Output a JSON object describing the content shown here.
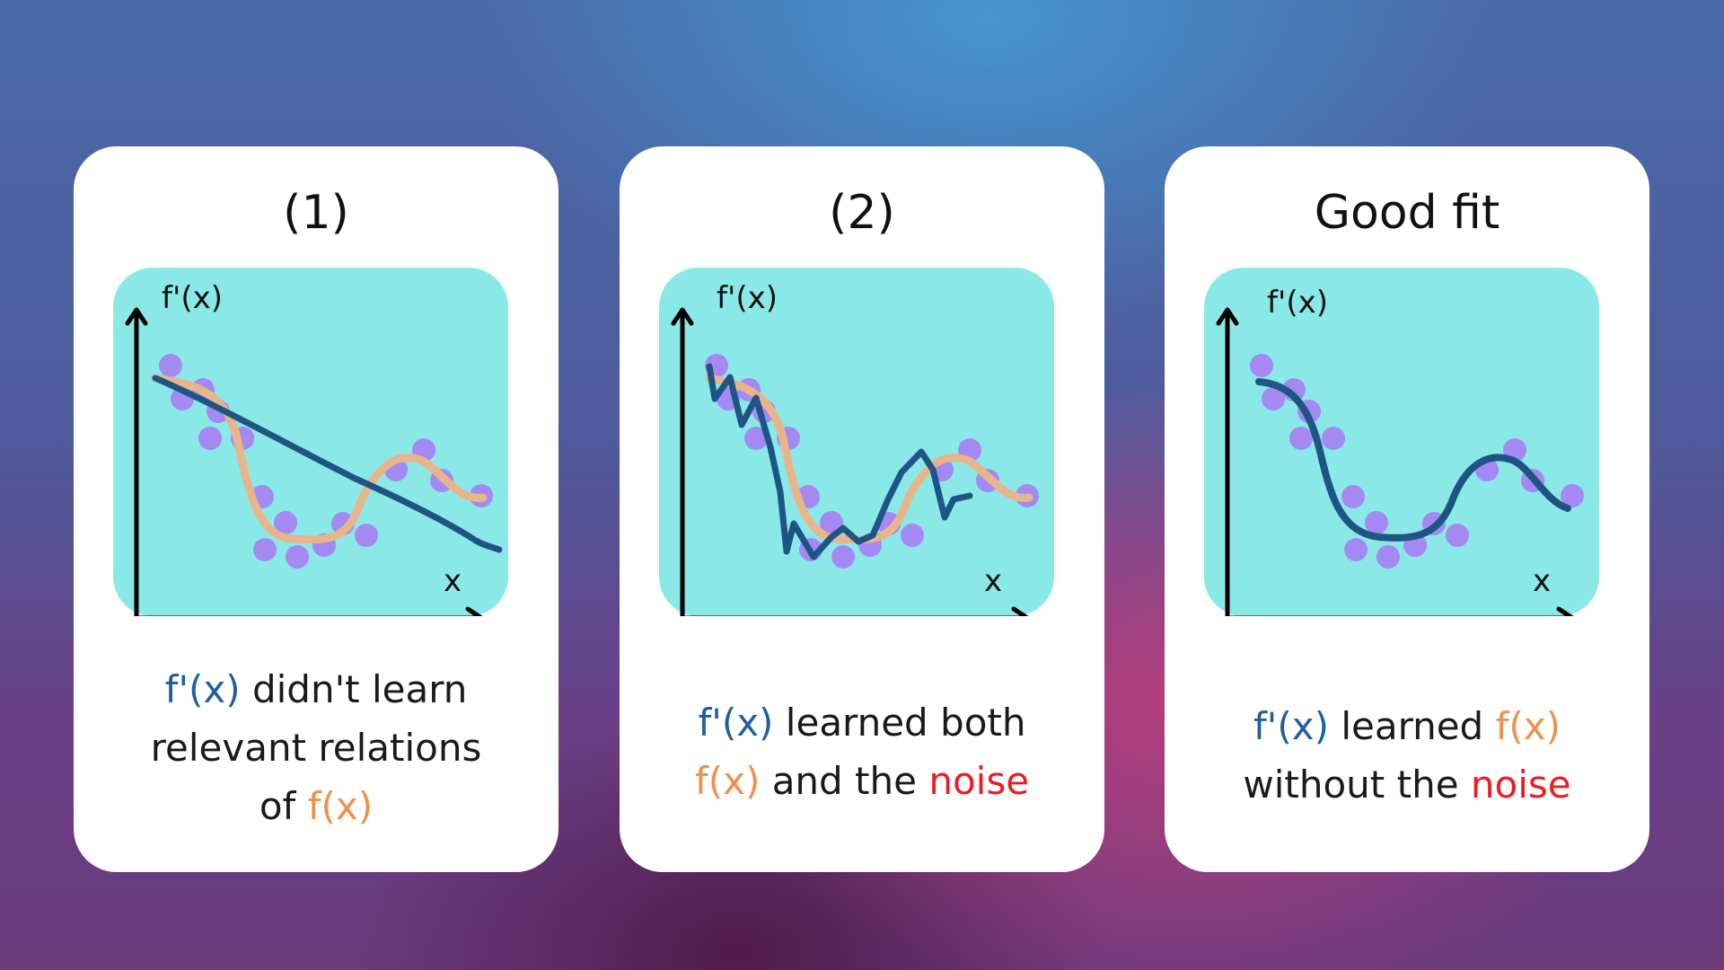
{
  "cards": [
    {
      "title": "(1)",
      "y_axis": "f'(x)",
      "x_axis": "x",
      "caption": {
        "line1_blue": "f'(x)",
        "line1_rest": " didn't learn",
        "line2": "relevant relations",
        "line3_pre": "of ",
        "line3_orange": "f(x)"
      }
    },
    {
      "title": "(2)",
      "y_axis": "f'(x)",
      "x_axis": "x",
      "caption": {
        "line1_blue": "f'(x)",
        "line1_rest": " learned both",
        "line2_orange": "f(x)",
        "line2_mid": " and the ",
        "line2_red": "noise"
      }
    },
    {
      "title": "Good fit",
      "y_axis": "f'(x)",
      "x_axis": "x",
      "caption": {
        "line1_blue": "f'(x)",
        "line1_mid": " learned ",
        "line1_orange": "f(x)",
        "line2_pre": "without the ",
        "line2_red": "noise"
      }
    }
  ],
  "colors": {
    "panel": "#8ae8e7",
    "data_points": "#a589f3",
    "true_function": "#e8b58a",
    "learned_function": "#1f5585",
    "blue_text": "#1f5fa0",
    "orange_text": "#f0904c",
    "red_text": "#ee1c24"
  }
}
